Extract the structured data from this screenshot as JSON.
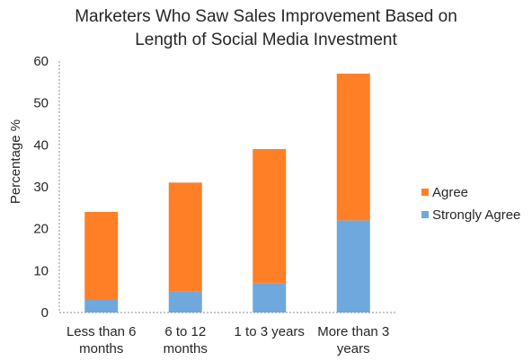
{
  "chart_data": {
    "type": "bar",
    "stacked": true,
    "title_lines": [
      "Marketers Who Saw Sales Improvement Based on",
      "Length of Social Media Investment"
    ],
    "xlabel": "",
    "ylabel": "Percentage %",
    "ylim": [
      0,
      60
    ],
    "yticks": [
      0,
      10,
      20,
      30,
      40,
      50,
      60
    ],
    "grid": false,
    "legend_position": "right",
    "categories": [
      [
        "Less than 6",
        "months"
      ],
      [
        "6 to 12",
        "months"
      ],
      [
        "1 to 3 years"
      ],
      [
        "More than 3",
        "years"
      ]
    ],
    "series": [
      {
        "name": "Strongly Agree",
        "color": "#6fa8dc",
        "values": [
          3,
          5,
          7,
          22
        ]
      },
      {
        "name": "Agree",
        "color": "#ff7f27",
        "values": [
          21,
          26,
          32,
          35
        ]
      }
    ],
    "legend_order": [
      "Agree",
      "Strongly Agree"
    ]
  }
}
